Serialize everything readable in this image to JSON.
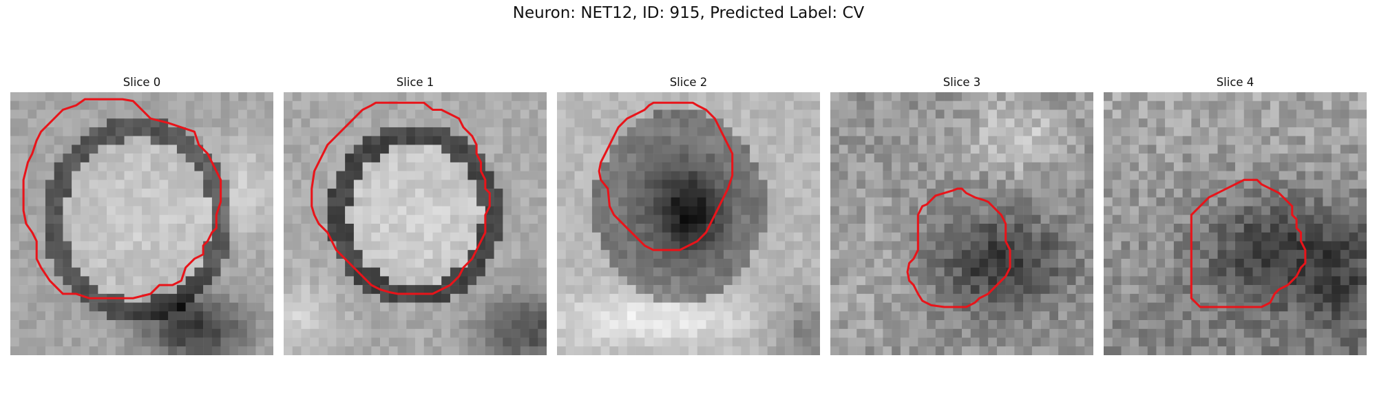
{
  "figure": {
    "title": "Neuron: NET12, ID: 915, Predicted Label: CV"
  },
  "panels": [
    {
      "title": "Slice 0"
    },
    {
      "title": "Slice 1"
    },
    {
      "title": "Slice 2"
    },
    {
      "title": "Slice 3"
    },
    {
      "title": "Slice 4"
    }
  ],
  "colors": {
    "contour": "#e8141a",
    "background": "#ffffff"
  }
}
